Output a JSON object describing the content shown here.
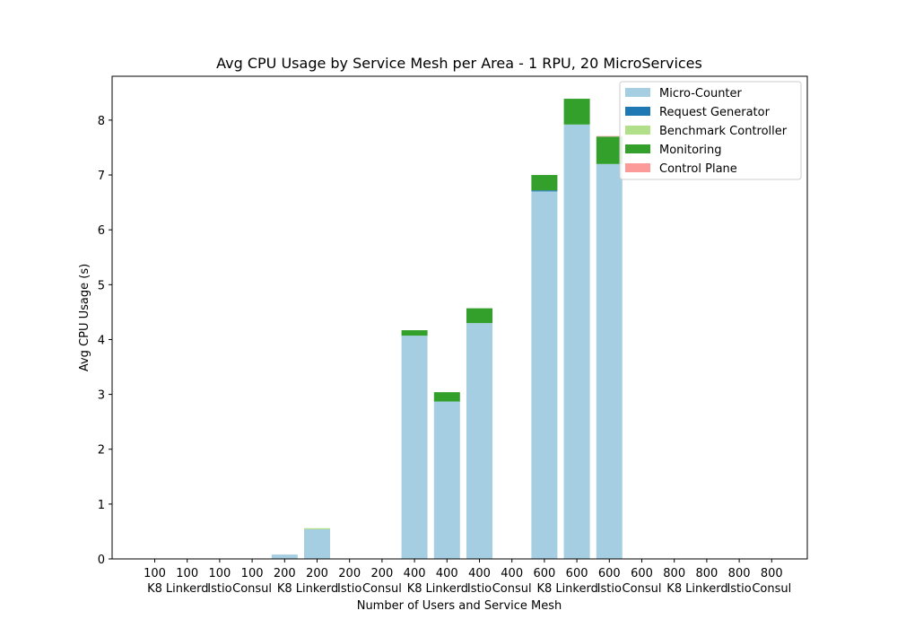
{
  "chart_data": {
    "type": "bar",
    "stacked": true,
    "title": "Avg CPU Usage by Service Mesh per Area - 1 RPU, 20 MicroServices",
    "xlabel": "Number of Users and Service Mesh",
    "ylabel": "Avg CPU Usage (s)",
    "ylim": [
      0,
      8.8
    ],
    "yticks": [
      "0",
      "1",
      "2",
      "3",
      "4",
      "5",
      "6",
      "7",
      "8"
    ],
    "grid": false,
    "legend_position": "top-right",
    "categories": [
      {
        "users": "100",
        "mesh": "K8"
      },
      {
        "users": "100",
        "mesh": "Linkerd"
      },
      {
        "users": "100",
        "mesh": "Istio"
      },
      {
        "users": "100",
        "mesh": "Consul"
      },
      {
        "users": "200",
        "mesh": "K8"
      },
      {
        "users": "200",
        "mesh": "Linkerd"
      },
      {
        "users": "200",
        "mesh": "Istio"
      },
      {
        "users": "200",
        "mesh": "Consul"
      },
      {
        "users": "400",
        "mesh": "K8"
      },
      {
        "users": "400",
        "mesh": "Linkerd"
      },
      {
        "users": "400",
        "mesh": "Istio"
      },
      {
        "users": "400",
        "mesh": "Consul"
      },
      {
        "users": "600",
        "mesh": "K8"
      },
      {
        "users": "600",
        "mesh": "Linkerd"
      },
      {
        "users": "600",
        "mesh": "Istio"
      },
      {
        "users": "600",
        "mesh": "Consul"
      },
      {
        "users": "800",
        "mesh": "K8"
      },
      {
        "users": "800",
        "mesh": "Linkerd"
      },
      {
        "users": "800",
        "mesh": "Istio"
      },
      {
        "users": "800",
        "mesh": "Consul"
      }
    ],
    "series": [
      {
        "name": "Micro-Counter",
        "color": "#a6cee3",
        "values": [
          0,
          0,
          0,
          0,
          0.08,
          0.54,
          0,
          0,
          4.07,
          2.87,
          4.3,
          0,
          6.7,
          7.92,
          7.2,
          0,
          0,
          0,
          0,
          0
        ]
      },
      {
        "name": "Request Generator",
        "color": "#1f78b4",
        "values": [
          0,
          0,
          0,
          0,
          0,
          0,
          0,
          0,
          0,
          0,
          0,
          0,
          0.02,
          0,
          0,
          0,
          0,
          0,
          0,
          0
        ]
      },
      {
        "name": "Benchmark Controller",
        "color": "#b2df8a",
        "values": [
          0,
          0,
          0,
          0,
          0,
          0.02,
          0,
          0,
          0,
          0,
          0,
          0,
          0,
          0,
          0,
          0,
          0,
          0,
          0,
          0
        ]
      },
      {
        "name": "Monitoring",
        "color": "#33a02c",
        "values": [
          0,
          0,
          0,
          0,
          0,
          0,
          0,
          0,
          0.1,
          0.17,
          0.27,
          0,
          0.28,
          0.47,
          0.5,
          0,
          0,
          0,
          0,
          0
        ]
      },
      {
        "name": "Control Plane",
        "color": "#fb9a99",
        "values": [
          0,
          0,
          0,
          0,
          0,
          0,
          0,
          0,
          0,
          0,
          0,
          0,
          0,
          0,
          0.01,
          0,
          0,
          0,
          0,
          0
        ]
      }
    ]
  }
}
